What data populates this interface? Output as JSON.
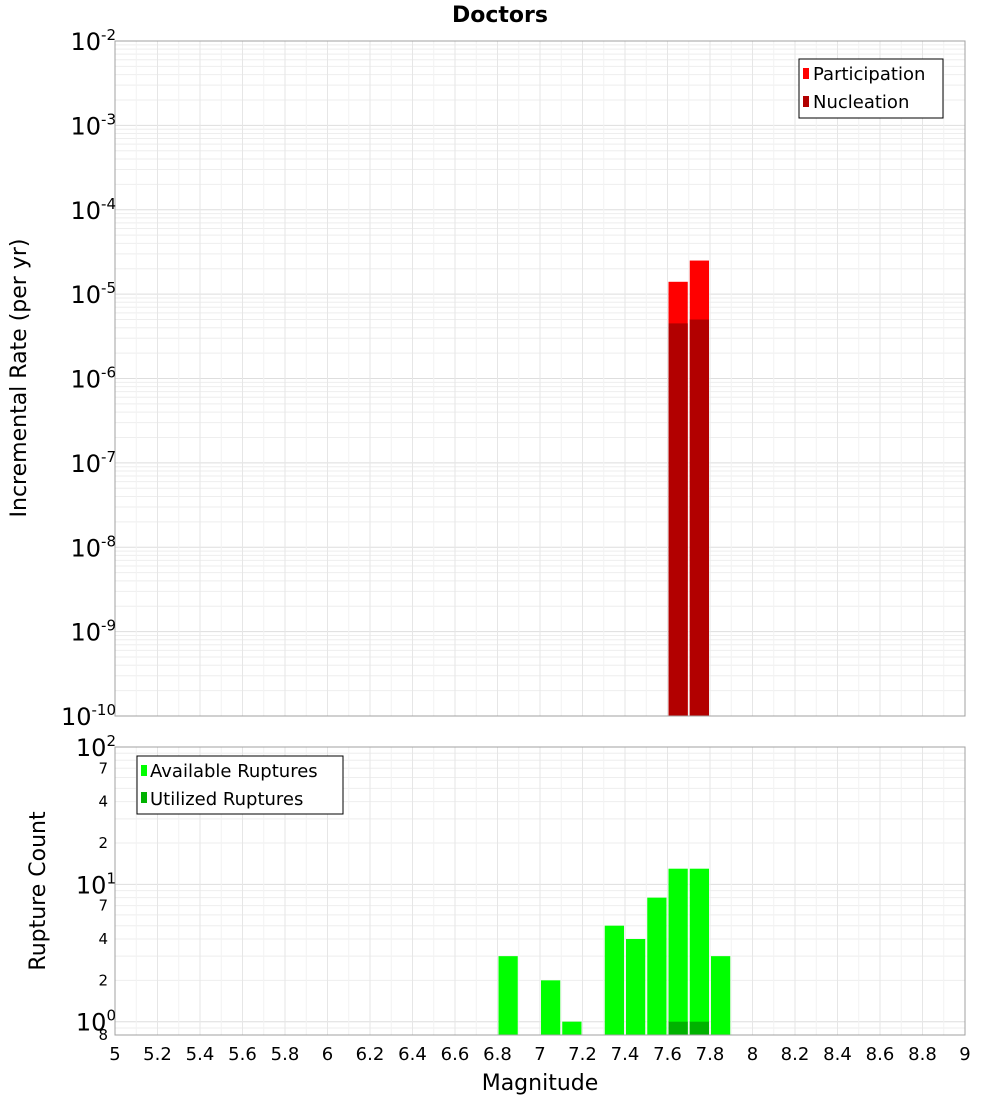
{
  "chart_data": [
    {
      "type": "bar",
      "title": "Doctors",
      "xlabel": "",
      "ylabel": "Incremental Rate (per yr)",
      "xlim": [
        5,
        9
      ],
      "ylim": [
        1e-10,
        0.01
      ],
      "yscale": "log",
      "grid": true,
      "legend_position": "top-right",
      "bin_width": 0.1,
      "y_tick_labels": [
        {
          "base": "10",
          "exp": "-2"
        },
        {
          "base": "10",
          "exp": "-3"
        },
        {
          "base": "10",
          "exp": "-4"
        },
        {
          "base": "10",
          "exp": "-5"
        },
        {
          "base": "10",
          "exp": "-6"
        },
        {
          "base": "10",
          "exp": "-7"
        },
        {
          "base": "10",
          "exp": "-8"
        },
        {
          "base": "10",
          "exp": "-9"
        },
        {
          "base": "10",
          "exp": "-10"
        }
      ],
      "series": [
        {
          "name": "Participation",
          "color": "#ff0000",
          "x": [
            7.65,
            7.75
          ],
          "values": [
            1.4e-05,
            2.5e-05
          ]
        },
        {
          "name": "Nucleation",
          "color": "#b20000",
          "x": [
            7.65,
            7.75
          ],
          "values": [
            4.5e-06,
            5e-06
          ]
        }
      ]
    },
    {
      "type": "bar",
      "title": "",
      "xlabel": "Magnitude",
      "ylabel": "Rupture Count",
      "xlim": [
        5,
        9
      ],
      "ylim": [
        0.8,
        100
      ],
      "yscale": "log",
      "grid": true,
      "legend_position": "top-left",
      "bin_width": 0.1,
      "x_tick_labels": [
        "5",
        "5.2",
        "5.4",
        "5.6",
        "5.8",
        "6",
        "6.2",
        "6.4",
        "6.6",
        "6.8",
        "7",
        "7.2",
        "7.4",
        "7.6",
        "7.8",
        "8",
        "8.2",
        "8.4",
        "8.6",
        "8.8",
        "9"
      ],
      "y_tick_labels": [
        {
          "base": "10",
          "exp": "2"
        },
        {
          "base": "10",
          "exp": "1"
        },
        {
          "base": "10",
          "exp": "0"
        }
      ],
      "y_minor_labels": [
        "7",
        "4",
        "2",
        "7",
        "4",
        "2",
        "8"
      ],
      "series": [
        {
          "name": "Available Ruptures",
          "color": "#00ff00",
          "x": [
            6.85,
            7.05,
            7.15,
            7.35,
            7.45,
            7.55,
            7.65,
            7.75,
            7.85
          ],
          "values": [
            3,
            2,
            1,
            5,
            4,
            8,
            13,
            13,
            3
          ]
        },
        {
          "name": "Utilized Ruptures",
          "color": "#00b200",
          "x": [
            7.65,
            7.75
          ],
          "values": [
            1,
            1
          ]
        }
      ]
    }
  ]
}
